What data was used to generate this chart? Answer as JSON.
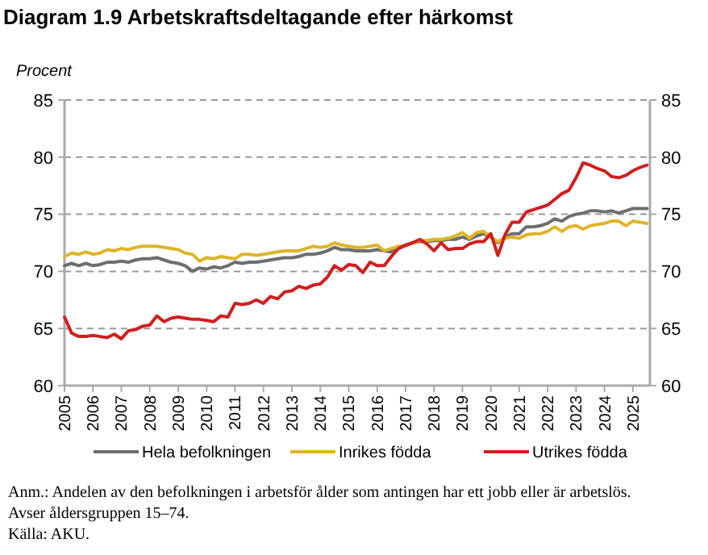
{
  "chart_data": {
    "type": "line",
    "title": "Diagram 1.9 Arbetskraftsdeltagande efter härkomst",
    "ylabel": "Procent",
    "annotations": [
      "Anm.: Andelen av den befolkningen i arbetsför ålder som antingen har ett jobb eller är arbetslös.",
      "Avser åldersgruppen 15–74.",
      "Källa: AKU."
    ],
    "x": [
      2005,
      2005.25,
      2005.5,
      2005.75,
      2006,
      2006.25,
      2006.5,
      2006.75,
      2007,
      2007.25,
      2007.5,
      2007.75,
      2008,
      2008.25,
      2008.5,
      2008.75,
      2009,
      2009.25,
      2009.5,
      2009.75,
      2010,
      2010.25,
      2010.5,
      2010.75,
      2011,
      2011.25,
      2011.5,
      2011.75,
      2012,
      2012.25,
      2012.5,
      2012.75,
      2013,
      2013.25,
      2013.5,
      2013.75,
      2014,
      2014.25,
      2014.5,
      2014.75,
      2015,
      2015.25,
      2015.5,
      2015.75,
      2016,
      2016.25,
      2016.5,
      2016.75,
      2017,
      2017.25,
      2017.5,
      2017.75,
      2018,
      2018.25,
      2018.5,
      2018.75,
      2019,
      2019.25,
      2019.5,
      2019.75,
      2020,
      2020.25,
      2020.5,
      2020.75,
      2021,
      2021.25,
      2021.5,
      2021.75,
      2022,
      2022.25,
      2022.5,
      2022.75,
      2023,
      2023.25,
      2023.5,
      2023.75,
      2024,
      2024.25,
      2024.5,
      2024.75,
      2025,
      2025.25,
      2025.5
    ],
    "series": [
      {
        "name": "Hela befolkningen",
        "color": "#6d6e71",
        "values": [
          70.5,
          70.7,
          70.5,
          70.7,
          70.5,
          70.6,
          70.8,
          70.8,
          70.9,
          70.8,
          71.0,
          71.1,
          71.1,
          71.2,
          71.0,
          70.8,
          70.7,
          70.5,
          70.0,
          70.3,
          70.2,
          70.4,
          70.3,
          70.5,
          70.8,
          70.7,
          70.8,
          70.8,
          70.9,
          71.0,
          71.1,
          71.2,
          71.2,
          71.3,
          71.5,
          71.5,
          71.6,
          71.8,
          72.1,
          71.9,
          71.9,
          71.8,
          71.8,
          71.8,
          71.9,
          71.8,
          71.7,
          72.0,
          72.3,
          72.5,
          72.6,
          72.6,
          72.7,
          72.7,
          72.8,
          72.8,
          73.0,
          72.8,
          73.1,
          73.3,
          73.0,
          72.5,
          73.0,
          73.3,
          73.3,
          73.9,
          73.9,
          74.0,
          74.2,
          74.6,
          74.4,
          74.8,
          75.0,
          75.1,
          75.3,
          75.3,
          75.2,
          75.3,
          75.1,
          75.3,
          75.5,
          75.5,
          75.5
        ]
      },
      {
        "name": "Inrikes födda",
        "color": "#e0b42a",
        "values": [
          71.3,
          71.6,
          71.5,
          71.7,
          71.5,
          71.6,
          71.9,
          71.8,
          72.0,
          71.9,
          72.1,
          72.2,
          72.2,
          72.2,
          72.1,
          72.0,
          71.9,
          71.6,
          71.5,
          70.9,
          71.2,
          71.1,
          71.3,
          71.2,
          71.1,
          71.5,
          71.5,
          71.4,
          71.5,
          71.6,
          71.7,
          71.8,
          71.8,
          71.8,
          72.0,
          72.2,
          72.1,
          72.2,
          72.5,
          72.3,
          72.2,
          72.1,
          72.1,
          72.2,
          72.3,
          71.8,
          72.0,
          72.2,
          72.2,
          72.5,
          72.7,
          72.7,
          72.8,
          72.8,
          72.9,
          73.1,
          73.4,
          72.9,
          73.4,
          73.5,
          73.0,
          72.6,
          72.9,
          73.0,
          72.9,
          73.2,
          73.3,
          73.3,
          73.5,
          73.9,
          73.5,
          73.9,
          74.0,
          73.7,
          74.0,
          74.1,
          74.2,
          74.4,
          74.4,
          74.0,
          74.4,
          74.3,
          74.2
        ]
      },
      {
        "name": "Utrikes födda",
        "color": "#d01f1f",
        "values": [
          66.0,
          64.6,
          64.3,
          64.3,
          64.4,
          64.3,
          64.2,
          64.5,
          64.1,
          64.8,
          64.9,
          65.2,
          65.3,
          66.1,
          65.6,
          65.9,
          66.0,
          65.9,
          65.8,
          65.8,
          65.7,
          65.6,
          66.1,
          66.0,
          67.2,
          67.1,
          67.2,
          67.5,
          67.2,
          67.8,
          67.6,
          68.2,
          68.3,
          68.7,
          68.5,
          68.8,
          68.9,
          69.5,
          70.5,
          70.1,
          70.6,
          70.5,
          69.9,
          70.8,
          70.5,
          70.5,
          71.3,
          72.0,
          72.3,
          72.5,
          72.8,
          72.4,
          71.8,
          72.5,
          71.9,
          72.0,
          72.0,
          72.4,
          72.6,
          72.6,
          73.3,
          71.4,
          73.2,
          74.3,
          74.3,
          75.2,
          75.4,
          75.6,
          75.8,
          76.3,
          76.8,
          77.1,
          78.2,
          79.5,
          79.3,
          79.0,
          78.8,
          78.3,
          78.2,
          78.4,
          78.8,
          79.1,
          79.3
        ]
      }
    ],
    "xlim": [
      2005,
      2025.6
    ],
    "xticks": [
      2005,
      2006,
      2007,
      2008,
      2009,
      2010,
      2011,
      2012,
      2013,
      2014,
      2015,
      2016,
      2017,
      2018,
      2019,
      2020,
      2021,
      2022,
      2023,
      2024,
      2025
    ],
    "ylim": [
      60,
      85
    ],
    "yticks": [
      60,
      65,
      70,
      75,
      80,
      85
    ],
    "y2lim": [
      60,
      85
    ],
    "y2ticks": [
      60,
      65,
      70,
      75,
      80,
      85
    ],
    "grid": "y",
    "legend": "bottom",
    "line_style": "solid",
    "marker": "none"
  }
}
